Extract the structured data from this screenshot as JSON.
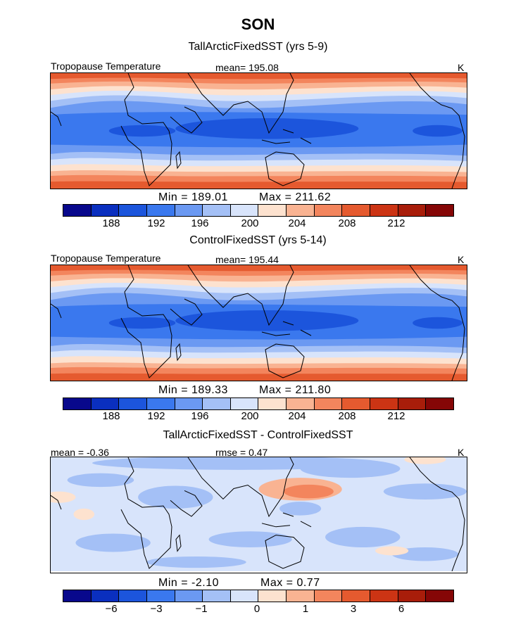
{
  "figure": {
    "title": "SON",
    "contour_colors": [
      "#08088c",
      "#0a2fbf",
      "#1c55dc",
      "#3a78ee",
      "#6b99f2",
      "#a4c0f6",
      "#d8e4fb",
      "#fde2cf",
      "#f9b392",
      "#f3855d",
      "#e55a2f",
      "#cc3414",
      "#a81d0a",
      "#850606"
    ]
  },
  "chart_data": [
    {
      "type": "heatmap",
      "title": "TallArcticFixedSST (yrs 5-9)",
      "field_label": "Tropopause Temperature",
      "mean_text": "mean= 195.08",
      "units": "K",
      "min_text": "Min = 189.01",
      "max_text": "Max = 211.62",
      "min": 189.01,
      "max": 211.62,
      "mean": 195.08,
      "colorbar_ticks": [
        "188",
        "192",
        "196",
        "200",
        "204",
        "208",
        "212"
      ]
    },
    {
      "type": "heatmap",
      "title": "ControlFixedSST (yrs 5-14)",
      "field_label": "Tropopause Temperature",
      "mean_text": "mean= 195.44",
      "units": "K",
      "min_text": "Min = 189.33",
      "max_text": "Max = 211.80",
      "min": 189.33,
      "max": 211.8,
      "mean": 195.44,
      "colorbar_ticks": [
        "188",
        "192",
        "196",
        "200",
        "204",
        "208",
        "212"
      ]
    },
    {
      "type": "heatmap",
      "title": "TallArcticFixedSST - ControlFixedSST",
      "mean_text": "mean = -0.36",
      "rmse_text": "rmse = 0.47",
      "units": "K",
      "min_text": "Min = -2.10",
      "max_text": "Max = 0.77",
      "min": -2.1,
      "max": 0.77,
      "mean": -0.36,
      "rmse": 0.47,
      "colorbar_ticks": [
        "−6",
        "−3",
        "−1",
        "0",
        "1",
        "3",
        "6"
      ]
    }
  ]
}
